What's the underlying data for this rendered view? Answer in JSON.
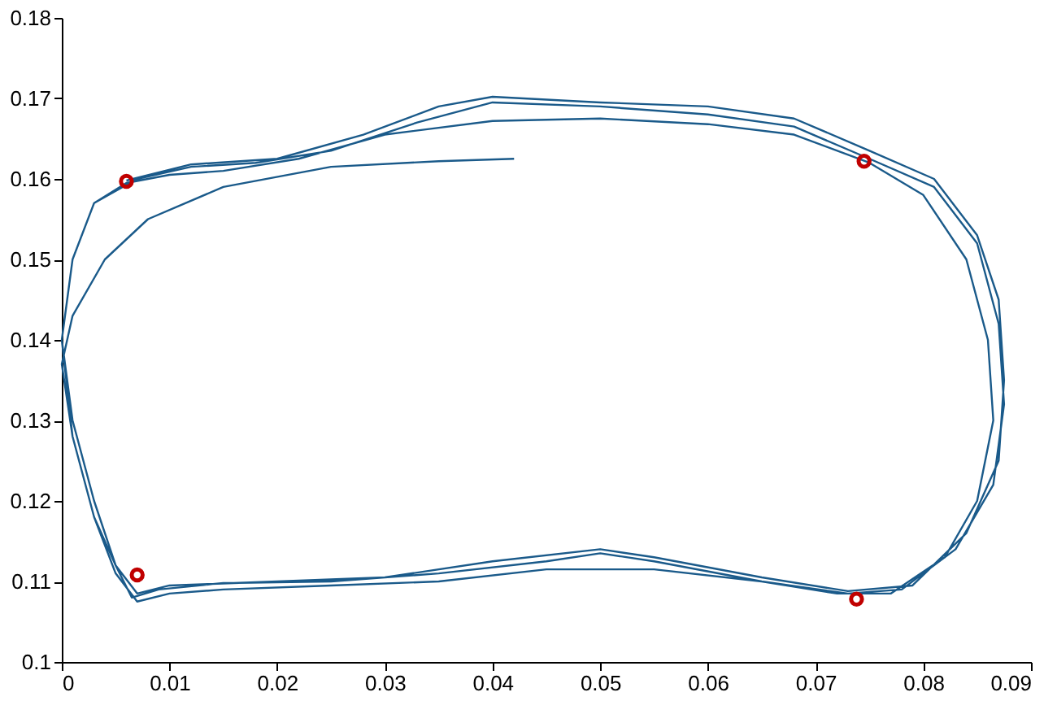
{
  "chart_data": {
    "type": "line",
    "xlim": [
      0,
      0.09
    ],
    "ylim": [
      0.1,
      0.18
    ],
    "xticks": [
      0,
      0.01,
      0.02,
      0.03,
      0.04,
      0.05,
      0.06,
      0.07,
      0.08,
      0.09
    ],
    "yticks": [
      0.1,
      0.11,
      0.12,
      0.13,
      0.14,
      0.15,
      0.16,
      0.17,
      0.18
    ],
    "grid": false,
    "series": [
      {
        "color": "#1a5a8a",
        "marker": "none",
        "line_style": "solid",
        "x": [
          0.042,
          0.035,
          0.025,
          0.015,
          0.008,
          0.004,
          0.001,
          0.0,
          0.001,
          0.003,
          0.005,
          0.007,
          0.01,
          0.015,
          0.025,
          0.035,
          0.045,
          0.055,
          0.065,
          0.072,
          0.077,
          0.082,
          0.085,
          0.0865,
          0.086,
          0.084,
          0.08,
          0.075,
          0.068,
          0.06,
          0.05,
          0.04,
          0.03,
          0.022,
          0.015,
          0.01,
          0.006,
          0.003,
          0.001,
          0.0,
          0.001,
          0.003,
          0.005,
          0.0065,
          0.009,
          0.015,
          0.025,
          0.035,
          0.045,
          0.05,
          0.055,
          0.065,
          0.073,
          0.078,
          0.083,
          0.0865,
          0.0875,
          0.087,
          0.085,
          0.081,
          0.075,
          0.068,
          0.06,
          0.05,
          0.04,
          0.033,
          0.025,
          0.018,
          0.012,
          0.007,
          0.003,
          0.001,
          0.0,
          0.001,
          0.003,
          0.005,
          0.007,
          0.01,
          0.02,
          0.03,
          0.04,
          0.05,
          0.055,
          0.065,
          0.073,
          0.079,
          0.084,
          0.087,
          0.0875,
          0.087,
          0.085,
          0.081,
          0.075,
          0.068,
          0.06,
          0.05,
          0.04,
          0.035,
          0.028,
          0.02,
          0.012,
          0.006
        ],
        "values": [
          0.1625,
          0.1622,
          0.1615,
          0.159,
          0.155,
          0.15,
          0.143,
          0.137,
          0.128,
          0.118,
          0.111,
          0.1075,
          0.1085,
          0.109,
          0.1095,
          0.11,
          0.1115,
          0.1115,
          0.11,
          0.1085,
          0.1085,
          0.113,
          0.12,
          0.13,
          0.14,
          0.15,
          0.158,
          0.162,
          0.1655,
          0.1668,
          0.1675,
          0.1672,
          0.1655,
          0.1625,
          0.161,
          0.1605,
          0.1595,
          0.157,
          0.15,
          0.14,
          0.13,
          0.12,
          0.112,
          0.108,
          0.109,
          0.1098,
          0.11,
          0.111,
          0.1125,
          0.1135,
          0.1125,
          0.11,
          0.1085,
          0.109,
          0.114,
          0.122,
          0.132,
          0.142,
          0.152,
          0.159,
          0.1625,
          0.1665,
          0.168,
          0.169,
          0.1695,
          0.167,
          0.1635,
          0.162,
          0.1615,
          0.16,
          0.157,
          0.15,
          0.14,
          0.128,
          0.118,
          0.112,
          0.1085,
          0.1095,
          0.11,
          0.1105,
          0.1125,
          0.114,
          0.113,
          0.1105,
          0.1088,
          0.1095,
          0.116,
          0.125,
          0.135,
          0.145,
          0.153,
          0.16,
          0.1635,
          0.1675,
          0.169,
          0.1695,
          0.1702,
          0.169,
          0.1655,
          0.1625,
          0.1618,
          0.1598
        ]
      },
      {
        "type": "scatter",
        "color": "#c00000",
        "marker": "circle",
        "x": [
          0.006,
          0.0745,
          0.007,
          0.0738
        ],
        "values": [
          0.1597,
          0.1622,
          0.1108,
          0.1078
        ]
      }
    ]
  }
}
